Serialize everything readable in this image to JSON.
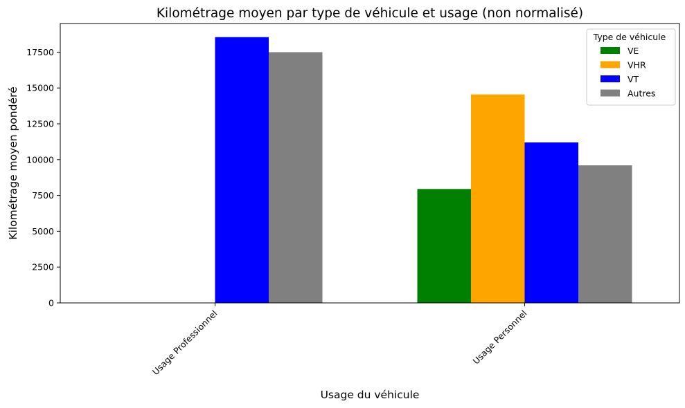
{
  "chart_data": {
    "type": "bar",
    "title": "Kilométrage moyen par type de véhicule et usage (non normalisé)",
    "xlabel": "Usage du véhicule",
    "ylabel": "Kilométrage moyen pondéré",
    "categories": [
      "Usage Professionnel",
      "Usage Personnel"
    ],
    "series": [
      {
        "name": "VE",
        "color": "#008000",
        "values": [
          0,
          7950
        ]
      },
      {
        "name": "VHR",
        "color": "#ffa500",
        "values": [
          0,
          14550
        ]
      },
      {
        "name": "VT",
        "color": "#0000ff",
        "values": [
          18550,
          11200
        ]
      },
      {
        "name": "Autres",
        "color": "#808080",
        "values": [
          17500,
          9600
        ]
      }
    ],
    "ylim": [
      0,
      19500
    ],
    "yticks": [
      0,
      2500,
      5000,
      7500,
      10000,
      12500,
      15000,
      17500
    ],
    "grid": false,
    "legend": {
      "title": "Type de véhicule",
      "position": "top-right"
    }
  }
}
